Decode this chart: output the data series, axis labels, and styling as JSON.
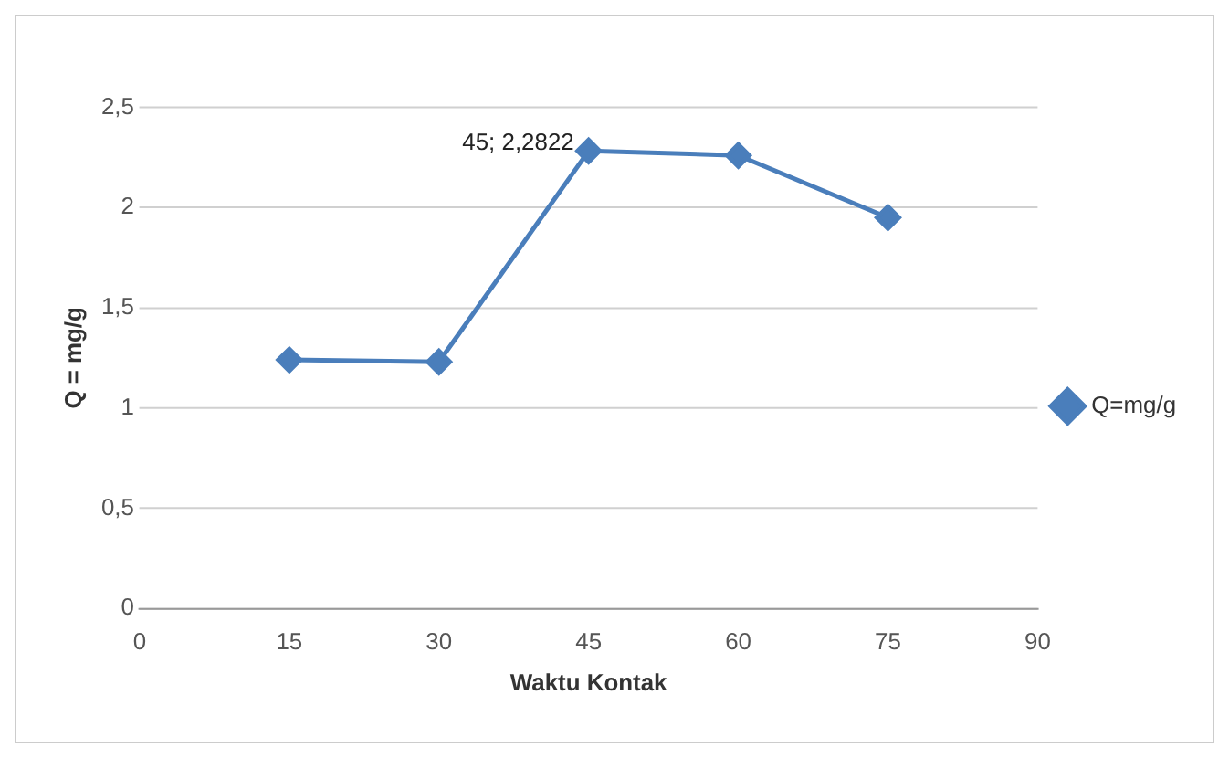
{
  "chart_data": {
    "type": "line",
    "xlabel": "Waktu Kontak",
    "ylabel": "Q = mg/g",
    "x": [
      15,
      30,
      45,
      60,
      75
    ],
    "series": [
      {
        "name": "Q=mg/g",
        "color": "#4a7ebb",
        "values": [
          1.24,
          1.23,
          2.2822,
          2.26,
          1.95
        ]
      }
    ],
    "xlim": [
      0,
      90
    ],
    "xticks": [
      0,
      15,
      30,
      45,
      60,
      75,
      90
    ],
    "ylim": [
      0,
      2.5
    ],
    "yticks": [
      0,
      {
        "value": 0.5,
        "label": "0,5"
      },
      1,
      {
        "value": 1.5,
        "label": "1,5"
      },
      2,
      {
        "value": 2.5,
        "label": "2,5"
      }
    ],
    "annotations": [
      {
        "text": "45; 2,2822",
        "x": 45,
        "y": 2.2822
      }
    ],
    "grid": "y",
    "legend": "right",
    "marker": "diamond",
    "line_style": "solid"
  }
}
